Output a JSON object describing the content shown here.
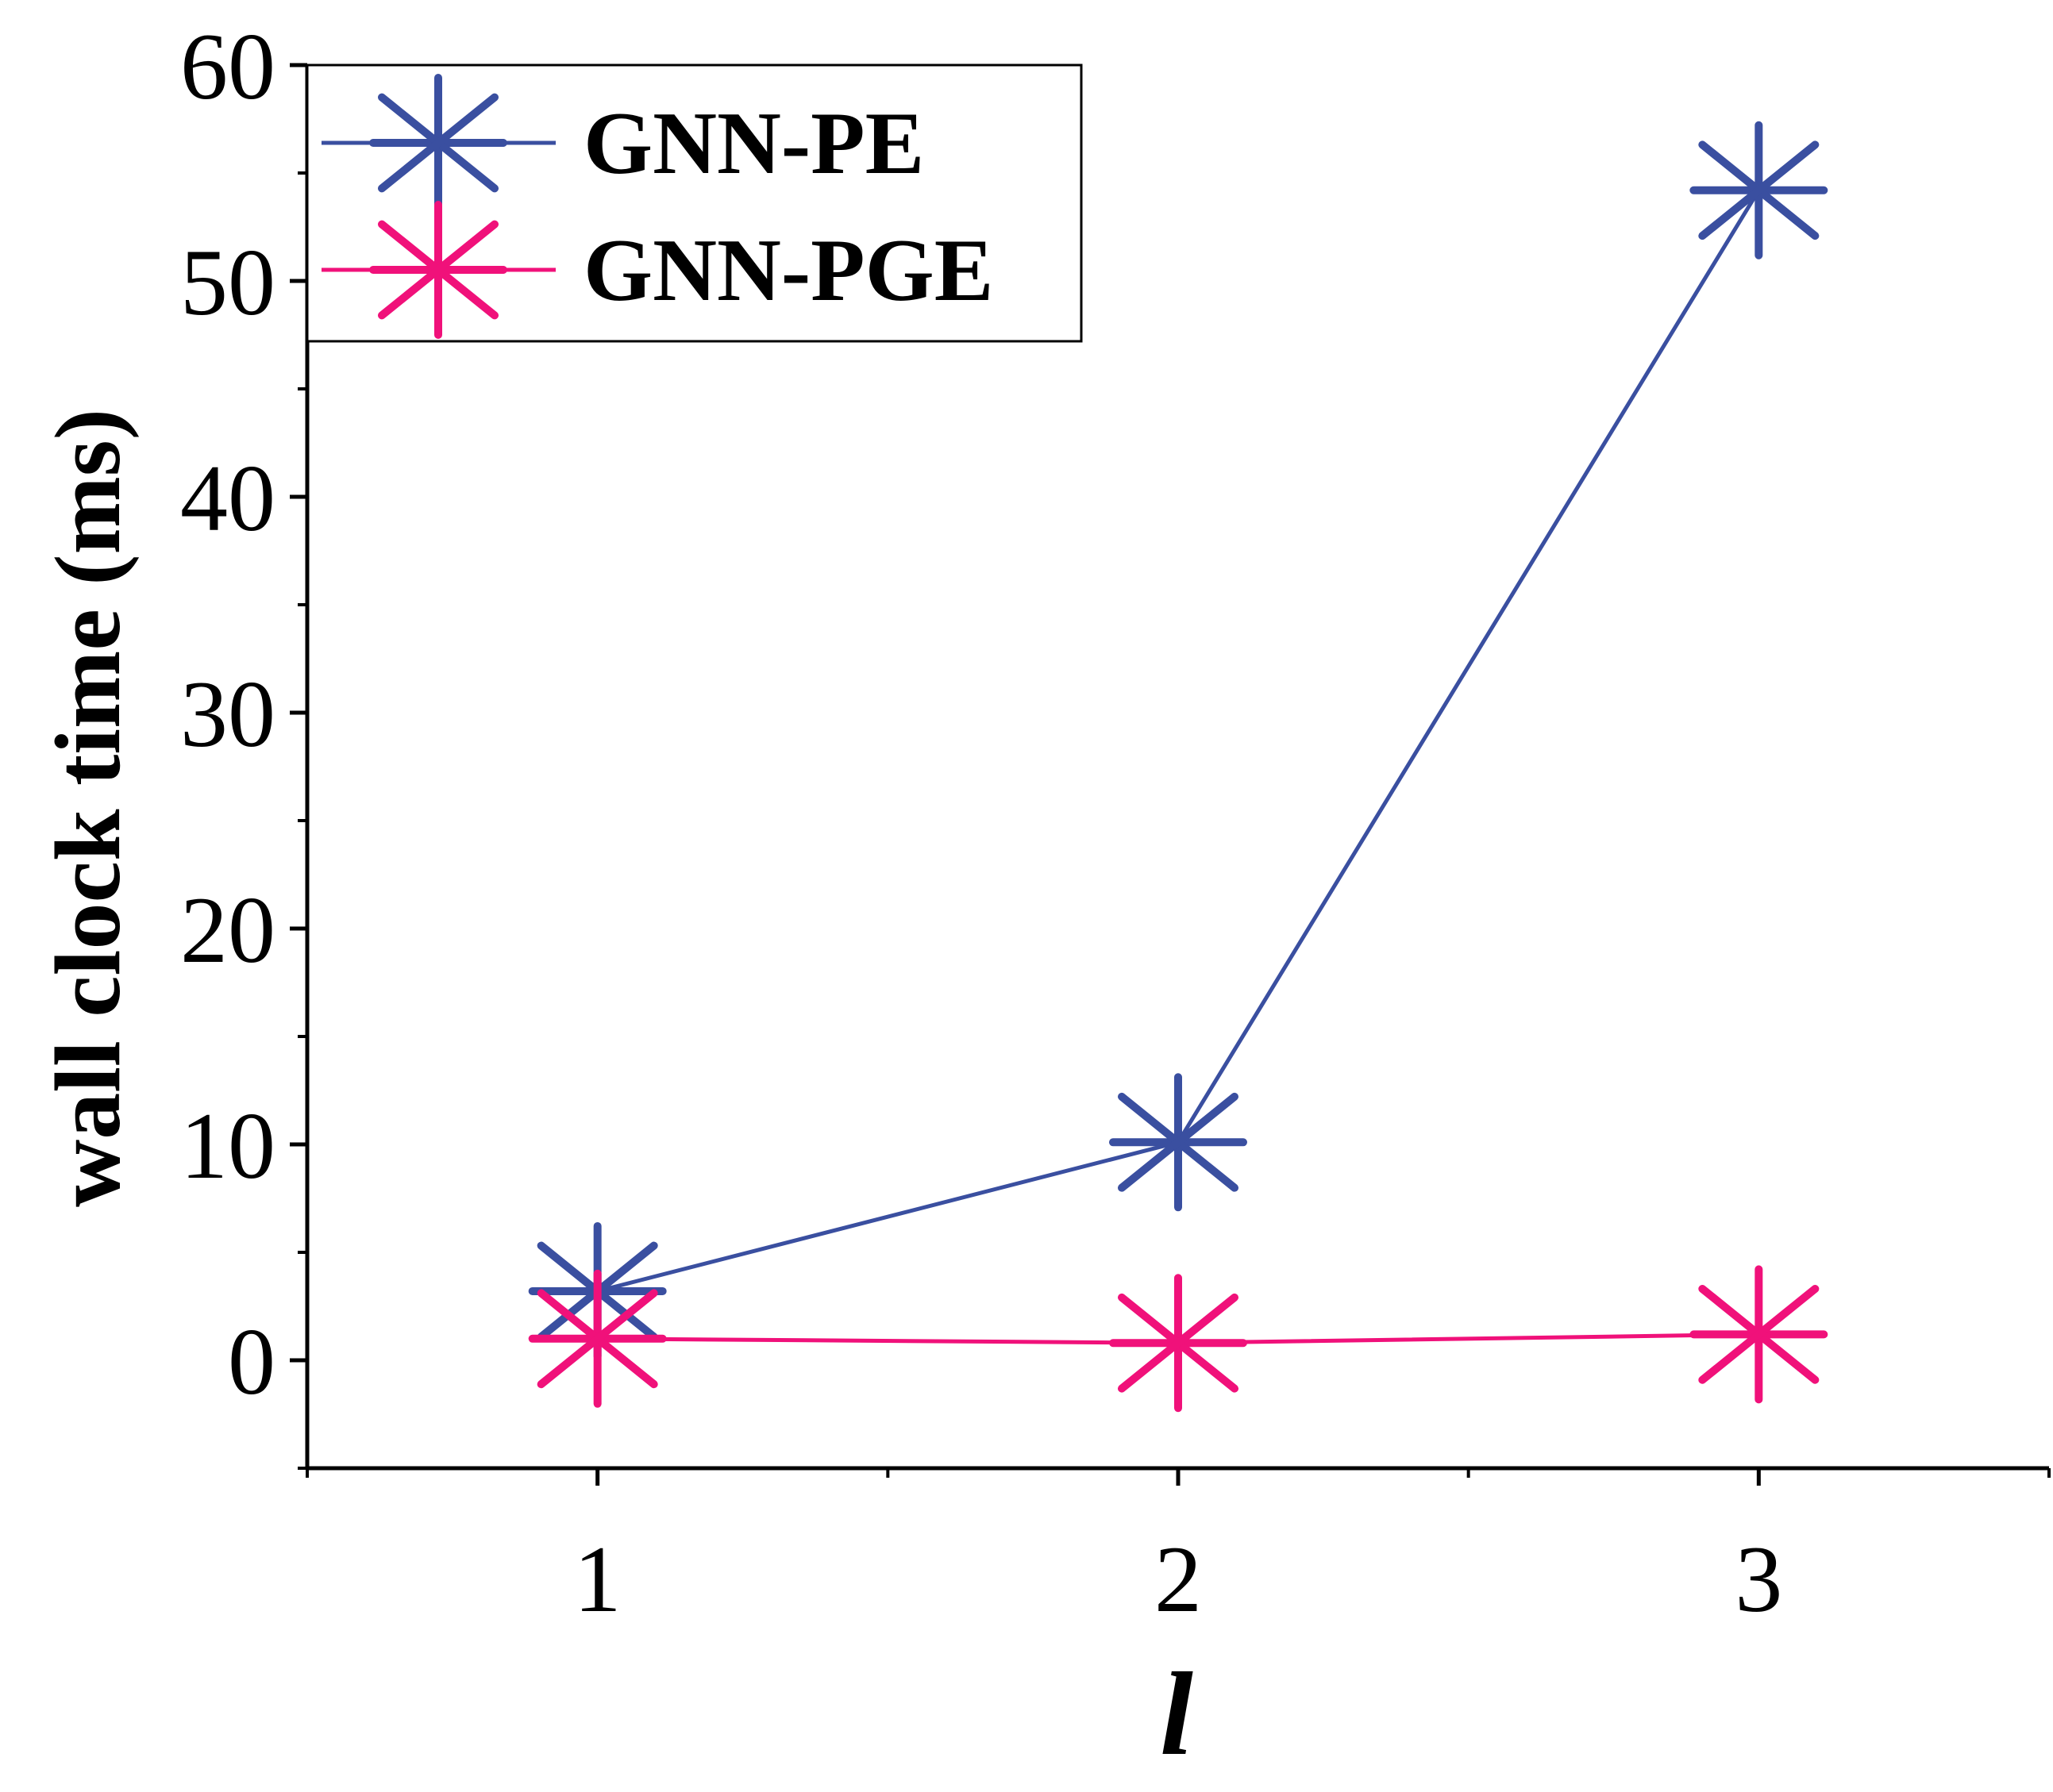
{
  "chart_data": {
    "type": "line",
    "xlabel": "l",
    "ylabel": "wall clock time (ms)",
    "x": [
      1,
      2,
      3
    ],
    "xticks": [
      "1",
      "2",
      "3"
    ],
    "xlim": [
      0.5,
      3.5
    ],
    "yticks": [
      "0",
      "10",
      "20",
      "30",
      "40",
      "50",
      "60"
    ],
    "ylim": [
      -5,
      60
    ],
    "grid": false,
    "legend_position": "top-left",
    "series": [
      {
        "name": "GNN-PE",
        "values": [
          3.2,
          10.1,
          54.2
        ],
        "color": "#3a4fa0",
        "marker": "asterisk"
      },
      {
        "name": "GNN-PGE",
        "values": [
          1.0,
          0.8,
          1.2
        ],
        "color": "#f0117a",
        "marker": "asterisk"
      }
    ]
  }
}
